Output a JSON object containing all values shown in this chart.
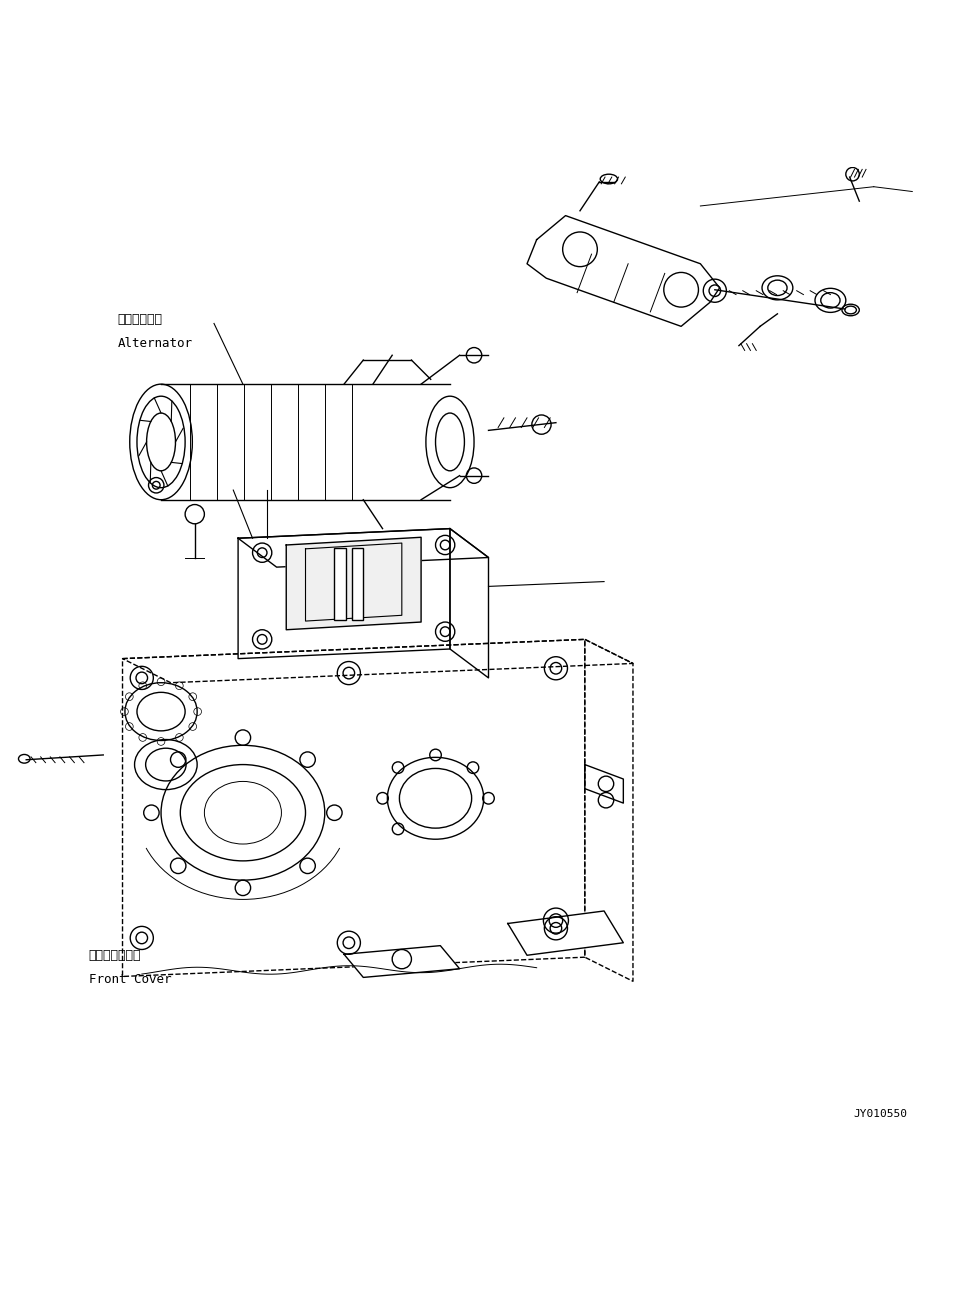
{
  "background_color": "#ffffff",
  "line_color": "#000000",
  "line_width": 1.0,
  "title": "",
  "fig_width": 9.77,
  "fig_height": 12.98,
  "dpi": 100,
  "labels": {
    "alternator_jp": "オルタネータ",
    "alternator_en": "Alternator",
    "front_cover_jp": "フロントカバー",
    "front_cover_en": "Front Cover",
    "part_number": "JY010550"
  },
  "label_positions": {
    "alternator": [
      0.115,
      0.835
    ],
    "front_cover": [
      0.085,
      0.175
    ]
  }
}
